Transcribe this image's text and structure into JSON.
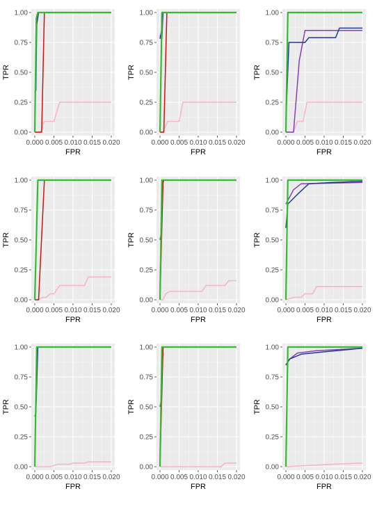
{
  "chart_data": {
    "type": "line",
    "layout": "3x3 grid of ROC panels",
    "xlabel": "FPR",
    "ylabel": "TPR",
    "xlim": [
      0,
      0.02
    ],
    "ylim": [
      0,
      1
    ],
    "xticks": [
      "0.000",
      "0.005",
      "0.010",
      "0.015",
      "0.020"
    ],
    "yticks": [
      "0.00",
      "0.25",
      "0.50",
      "0.75",
      "1.00"
    ],
    "grid": true,
    "legend": "none",
    "series_colors": {
      "green": "#33bb33",
      "red": "#cc1111",
      "pink": "#f4b6c8",
      "blue": "#1f3a93",
      "purple": "#8a3cb6"
    },
    "panels": [
      {
        "series": [
          {
            "color": "pink",
            "points": [
              [
                0,
                0
              ],
              [
                0.0015,
                0
              ],
              [
                0.0025,
                0.09
              ],
              [
                0.005,
                0.09
              ],
              [
                0.0065,
                0.25
              ],
              [
                0.02,
                0.25
              ]
            ]
          },
          {
            "color": "blue",
            "points": [
              [
                0,
                0.33
              ],
              [
                0.0003,
                0.35
              ],
              [
                0.0005,
                0.9
              ],
              [
                0.001,
                1
              ],
              [
                0.02,
                1
              ]
            ]
          },
          {
            "color": "red",
            "points": [
              [
                0,
                0
              ],
              [
                0.0018,
                0
              ],
              [
                0.0025,
                1
              ],
              [
                0.02,
                1
              ]
            ]
          },
          {
            "color": "green",
            "points": [
              [
                0,
                0
              ],
              [
                0.0004,
                0.95
              ],
              [
                0.0008,
                1
              ],
              [
                0.02,
                1
              ]
            ]
          }
        ]
      },
      {
        "series": [
          {
            "color": "pink",
            "points": [
              [
                0,
                0
              ],
              [
                0.0008,
                0
              ],
              [
                0.002,
                0.09
              ],
              [
                0.005,
                0.09
              ],
              [
                0.006,
                0.25
              ],
              [
                0.02,
                0.25
              ]
            ]
          },
          {
            "color": "purple",
            "points": [
              [
                0,
                0.8
              ],
              [
                0.0003,
                0.82
              ],
              [
                0.0005,
                0.78
              ],
              [
                0.0008,
                1
              ],
              [
                0.02,
                1
              ]
            ]
          },
          {
            "color": "blue",
            "points": [
              [
                0,
                0.78
              ],
              [
                0.0004,
                0.85
              ],
              [
                0.0008,
                1
              ],
              [
                0.02,
                1
              ]
            ]
          },
          {
            "color": "red",
            "points": [
              [
                0,
                0
              ],
              [
                0.001,
                0
              ],
              [
                0.0018,
                1
              ],
              [
                0.02,
                1
              ]
            ]
          },
          {
            "color": "green",
            "points": [
              [
                0,
                0
              ],
              [
                0.0005,
                1
              ],
              [
                0.02,
                1
              ]
            ]
          }
        ]
      },
      {
        "series": [
          {
            "color": "pink",
            "points": [
              [
                0,
                0
              ],
              [
                0.002,
                0
              ],
              [
                0.003,
                0.09
              ],
              [
                0.0045,
                0.09
              ],
              [
                0.0055,
                0.25
              ],
              [
                0.02,
                0.25
              ]
            ]
          },
          {
            "color": "purple",
            "points": [
              [
                0,
                0
              ],
              [
                0.002,
                0
              ],
              [
                0.0035,
                0.6
              ],
              [
                0.005,
                0.85
              ],
              [
                0.02,
                0.85
              ]
            ]
          },
          {
            "color": "blue",
            "points": [
              [
                0,
                0.1
              ],
              [
                0.0008,
                0.75
              ],
              [
                0.005,
                0.75
              ],
              [
                0.006,
                0.79
              ],
              [
                0.013,
                0.79
              ],
              [
                0.014,
                0.87
              ],
              [
                0.02,
                0.87
              ]
            ]
          },
          {
            "color": "green",
            "points": [
              [
                0,
                0
              ],
              [
                0.0005,
                1
              ],
              [
                0.02,
                1
              ]
            ]
          }
        ]
      },
      {
        "series": [
          {
            "color": "pink",
            "points": [
              [
                0,
                0
              ],
              [
                0.001,
                0
              ],
              [
                0.002,
                0.02
              ],
              [
                0.003,
                0.02
              ],
              [
                0.004,
                0.05
              ],
              [
                0.005,
                0.05
              ],
              [
                0.0065,
                0.12
              ],
              [
                0.013,
                0.12
              ],
              [
                0.014,
                0.19
              ],
              [
                0.02,
                0.19
              ]
            ]
          },
          {
            "color": "red",
            "points": [
              [
                0,
                0
              ],
              [
                0.001,
                0
              ],
              [
                0.0025,
                1
              ],
              [
                0.02,
                1
              ]
            ]
          },
          {
            "color": "green",
            "points": [
              [
                0,
                0
              ],
              [
                0.0008,
                1
              ],
              [
                0.02,
                1
              ]
            ]
          }
        ]
      },
      {
        "series": [
          {
            "color": "pink",
            "points": [
              [
                0,
                0
              ],
              [
                0.0008,
                0
              ],
              [
                0.0015,
                0.05
              ],
              [
                0.0025,
                0.07
              ],
              [
                0.011,
                0.07
              ],
              [
                0.012,
                0.12
              ],
              [
                0.017,
                0.12
              ],
              [
                0.018,
                0.16
              ],
              [
                0.02,
                0.16
              ]
            ]
          },
          {
            "color": "blue",
            "points": [
              [
                0,
                0.5
              ],
              [
                0.0003,
                0.55
              ],
              [
                0.0008,
                1
              ],
              [
                0.02,
                1
              ]
            ]
          },
          {
            "color": "red",
            "points": [
              [
                0,
                0
              ],
              [
                0.0008,
                0.98
              ],
              [
                0.001,
                1
              ],
              [
                0.02,
                1
              ]
            ]
          },
          {
            "color": "green",
            "points": [
              [
                0,
                0
              ],
              [
                0.0005,
                1
              ],
              [
                0.02,
                1
              ]
            ]
          }
        ]
      },
      {
        "series": [
          {
            "color": "pink",
            "points": [
              [
                0,
                0
              ],
              [
                0.002,
                0.02
              ],
              [
                0.004,
                0.02
              ],
              [
                0.005,
                0.05
              ],
              [
                0.007,
                0.05
              ],
              [
                0.008,
                0.11
              ],
              [
                0.02,
                0.11
              ]
            ]
          },
          {
            "color": "purple",
            "points": [
              [
                0,
                0.8
              ],
              [
                0.002,
                0.92
              ],
              [
                0.004,
                0.97
              ],
              [
                0.02,
                0.98
              ]
            ]
          },
          {
            "color": "blue",
            "points": [
              [
                0,
                0.6
              ],
              [
                0.0005,
                0.8
              ],
              [
                0.003,
                0.88
              ],
              [
                0.006,
                0.97
              ],
              [
                0.012,
                0.98
              ],
              [
                0.02,
                0.99
              ]
            ]
          },
          {
            "color": "green",
            "points": [
              [
                0,
                0
              ],
              [
                0.0005,
                1
              ],
              [
                0.02,
                1
              ]
            ]
          }
        ]
      },
      {
        "series": [
          {
            "color": "pink",
            "points": [
              [
                0,
                0
              ],
              [
                0.004,
                0
              ],
              [
                0.006,
                0.02
              ],
              [
                0.009,
                0.02
              ],
              [
                0.01,
                0.03
              ],
              [
                0.013,
                0.03
              ],
              [
                0.014,
                0.04
              ],
              [
                0.02,
                0.04
              ]
            ]
          },
          {
            "color": "blue",
            "points": [
              [
                0,
                0.42
              ],
              [
                0.0003,
                0.45
              ],
              [
                0.0008,
                1
              ],
              [
                0.02,
                1
              ]
            ]
          },
          {
            "color": "green",
            "points": [
              [
                0,
                0
              ],
              [
                0.0005,
                1
              ],
              [
                0.02,
                1
              ]
            ]
          }
        ]
      },
      {
        "series": [
          {
            "color": "pink",
            "points": [
              [
                0,
                0
              ],
              [
                0.016,
                0
              ],
              [
                0.017,
                0.03
              ],
              [
                0.02,
                0.03
              ]
            ]
          },
          {
            "color": "blue",
            "points": [
              [
                0,
                0.5
              ],
              [
                0.0003,
                0.55
              ],
              [
                0.0008,
                1
              ],
              [
                0.02,
                1
              ]
            ]
          },
          {
            "color": "red",
            "points": [
              [
                0,
                0
              ],
              [
                0.0008,
                1
              ],
              [
                0.02,
                1
              ]
            ]
          },
          {
            "color": "green",
            "points": [
              [
                0,
                0
              ],
              [
                0.0005,
                1
              ],
              [
                0.02,
                1
              ]
            ]
          }
        ]
      },
      {
        "series": [
          {
            "color": "pink",
            "points": [
              [
                0,
                0
              ],
              [
                0.006,
                0.01
              ],
              [
                0.012,
                0.02
              ],
              [
                0.02,
                0.03
              ]
            ]
          },
          {
            "color": "purple",
            "points": [
              [
                0,
                0.85
              ],
              [
                0.001,
                0.9
              ],
              [
                0.003,
                0.95
              ],
              [
                0.008,
                0.97
              ],
              [
                0.02,
                0.99
              ]
            ]
          },
          {
            "color": "blue",
            "points": [
              [
                0,
                0.85
              ],
              [
                0.001,
                0.9
              ],
              [
                0.004,
                0.94
              ],
              [
                0.01,
                0.96
              ],
              [
                0.02,
                0.99
              ]
            ]
          },
          {
            "color": "green",
            "points": [
              [
                0,
                0
              ],
              [
                0.0005,
                1
              ],
              [
                0.02,
                1
              ]
            ]
          }
        ]
      }
    ]
  }
}
